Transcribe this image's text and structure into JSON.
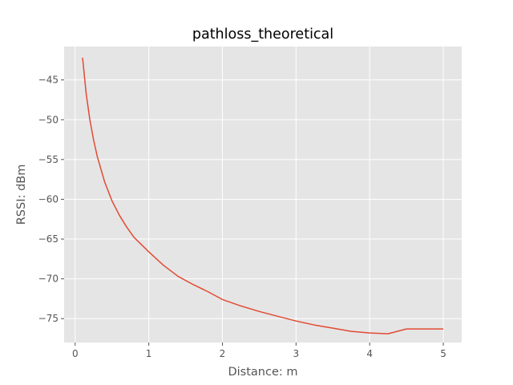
{
  "chart_data": {
    "type": "line",
    "title": "pathloss_theoretical",
    "xlabel": "Distance: m",
    "ylabel": "RSSI: dBm",
    "xlim": [
      -0.15,
      5.25
    ],
    "ylim": [
      -78.0,
      -40.8
    ],
    "grid": true,
    "xticks": [
      0,
      1,
      2,
      3,
      4,
      5
    ],
    "xtick_labels": [
      "0",
      "1",
      "2",
      "3",
      "4",
      "5"
    ],
    "yticks": [
      -45,
      -50,
      -55,
      -60,
      -65,
      -70,
      -75
    ],
    "ytick_labels": [
      "−45",
      "−50",
      "−55",
      "−60",
      "−65",
      "−70",
      "−75"
    ],
    "series": [
      {
        "color": "#e24a33",
        "x": [
          0.1,
          0.15,
          0.2,
          0.25,
          0.3,
          0.4,
          0.5,
          0.6,
          0.7,
          0.8,
          1.0,
          1.2,
          1.4,
          1.6,
          1.8,
          2.0,
          2.25,
          2.5,
          2.75,
          3.0,
          3.25,
          3.5,
          3.75,
          4.0,
          4.25,
          4.5,
          4.75,
          5.0
        ],
        "y": [
          -42.2,
          -46.8,
          -50.0,
          -52.5,
          -54.6,
          -57.8,
          -60.2,
          -62.0,
          -63.5,
          -64.8,
          -66.6,
          -68.3,
          -69.7,
          -70.7,
          -71.6,
          -72.6,
          -73.4,
          -74.1,
          -74.7,
          -75.3,
          -75.8,
          -76.2,
          -76.6,
          -76.8,
          -76.9,
          -76.3,
          -76.3,
          -76.3
        ]
      }
    ],
    "colors": {
      "plot_background": "#e5e5e5",
      "grid": "#ffffff",
      "line": "#e24a33",
      "tick_text": "#555555",
      "title_text": "#000000"
    }
  }
}
